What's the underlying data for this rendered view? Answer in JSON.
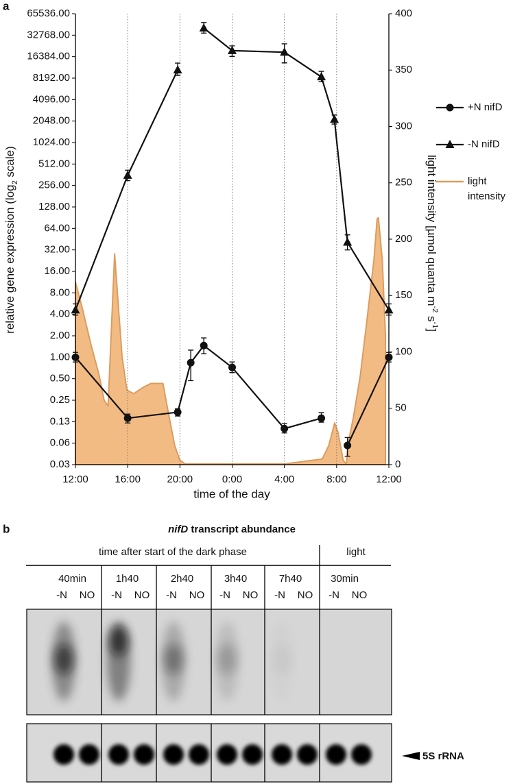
{
  "chart_data": {
    "type": "line",
    "panel_label": "a",
    "xlabel": "time of the day",
    "ylabel": [
      "relative gene expression (log",
      "2",
      " scale)"
    ],
    "y2label": [
      "light intensity [µmol quanta m",
      "-2",
      " s",
      "-1",
      "]"
    ],
    "x": [
      0,
      4,
      7.83,
      8.83,
      9.83,
      12,
      16,
      18.83,
      19.83,
      20.83,
      24
    ],
    "xlim": [
      0,
      24
    ],
    "xticks": [
      {
        "value": 0,
        "label": "12:00"
      },
      {
        "value": 4,
        "label": "16:00"
      },
      {
        "value": 8,
        "label": "20:00"
      },
      {
        "value": 12,
        "label": "0:00"
      },
      {
        "value": 16,
        "label": "4:00"
      },
      {
        "value": 20,
        "label": "8:00"
      },
      {
        "value": 24,
        "label": "12:00"
      }
    ],
    "xgrid": true,
    "ylog": 2,
    "ylim": [
      0.03125,
      65536
    ],
    "yticks": [
      {
        "value": 65536,
        "label": "65536.00"
      },
      {
        "value": 32768,
        "label": "32768.00"
      },
      {
        "value": 16384,
        "label": "16384.00"
      },
      {
        "value": 8192,
        "label": "8192.00"
      },
      {
        "value": 4096,
        "label": "4096.00"
      },
      {
        "value": 2048,
        "label": "2048.00"
      },
      {
        "value": 1024,
        "label": "1024.00"
      },
      {
        "value": 512,
        "label": "512.00"
      },
      {
        "value": 256,
        "label": "256.00"
      },
      {
        "value": 128,
        "label": "128.00"
      },
      {
        "value": 64,
        "label": "64.00"
      },
      {
        "value": 32,
        "label": "32.00"
      },
      {
        "value": 16,
        "label": "16.00"
      },
      {
        "value": 8,
        "label": "8.00"
      },
      {
        "value": 4,
        "label": "4.00"
      },
      {
        "value": 2,
        "label": "2.00"
      },
      {
        "value": 1,
        "label": "1.00"
      },
      {
        "value": 0.5,
        "label": "0.50"
      },
      {
        "value": 0.25,
        "label": "0.25"
      },
      {
        "value": 0.125,
        "label": "0.13"
      },
      {
        "value": 0.0625,
        "label": "0.06"
      },
      {
        "value": 0.03125,
        "label": "0.03"
      }
    ],
    "y2lim": [
      0,
      400
    ],
    "y2ticks": [
      0,
      50,
      100,
      150,
      200,
      250,
      300,
      350,
      400
    ],
    "legend": "right",
    "series": [
      {
        "name": "+N nifD",
        "color": "#111111",
        "marker": "circle",
        "values": [
          1.0,
          0.14,
          0.17,
          0.84,
          1.46,
          0.72,
          0.1,
          0.14,
          null,
          0.058,
          1.0
        ],
        "error_bars": [
          [
            0.86,
            1.17
          ],
          [
            0.12,
            0.16
          ],
          [
            0.15,
            0.19
          ],
          [
            0.47,
            1.26
          ],
          [
            1.12,
            1.87
          ],
          [
            0.61,
            0.86
          ],
          [
            0.087,
            0.117
          ],
          [
            0.123,
            0.167
          ],
          null,
          [
            0.041,
            0.075
          ],
          [
            0.86,
            1.17
          ]
        ]
      },
      {
        "name": "-N nifD",
        "color": "#111111",
        "marker": "triangle",
        "values": [
          4.6,
          355,
          10650,
          null,
          41200,
          19900,
          18900,
          8530,
          2160,
          41,
          4.6
        ],
        "error_bars": [
          [
            3.9,
            5.6
          ],
          [
            300,
            420
          ],
          [
            8950,
            13300
          ],
          null,
          [
            35000,
            49300
          ],
          [
            16500,
            23200
          ],
          [
            13400,
            24800
          ],
          [
            7300,
            10200
          ],
          [
            1860,
            2490
          ],
          [
            32,
            52
          ],
          [
            3.9,
            5.6
          ]
        ]
      },
      {
        "name": "light intensity",
        "type": "area",
        "axis": "y2",
        "color": "#dc9c5e",
        "fill": "#f3bb84",
        "x": [
          0,
          0.5,
          1.2,
          1.8,
          2.2,
          2.5,
          3.0,
          3.26,
          3.57,
          3.94,
          4.46,
          5.25,
          5.78,
          6.3,
          6.7,
          7.1,
          7.6,
          8.0,
          8.4,
          12,
          16,
          18.9,
          19.4,
          19.85,
          20.1,
          20.5,
          20.75,
          20.85,
          21.27,
          21.8,
          22.3,
          22.85,
          23.1,
          23.2,
          23.5,
          23.74
        ],
        "values": [
          162,
          140,
          106,
          80,
          57,
          52,
          187,
          145,
          96,
          66,
          63,
          69,
          72,
          72,
          72,
          47,
          17,
          4,
          0.6,
          0.6,
          0.6,
          5,
          17,
          37,
          29,
          4,
          0,
          17,
          41,
          78,
          126,
          181,
          218,
          219,
          181,
          114
        ]
      }
    ]
  },
  "panel_b": {
    "label": "b",
    "title": {
      "gene": "nifD",
      "rest": " transcript abundance"
    },
    "header_dark": "time after start of the dark phase",
    "header_light": "light",
    "groups": [
      {
        "time": "40min",
        "lanes": [
          "-N",
          "NO"
        ]
      },
      {
        "time": "1h40",
        "lanes": [
          "-N",
          "NO"
        ]
      },
      {
        "time": "2h40",
        "lanes": [
          "-N",
          "NO"
        ]
      },
      {
        "time": "3h40",
        "lanes": [
          "-N",
          "NO"
        ]
      },
      {
        "time": "7h40",
        "lanes": [
          "-N",
          "NO"
        ]
      },
      {
        "time": "30min",
        "lanes": [
          "-N",
          "NO"
        ]
      }
    ],
    "band_label": "5S rRNA"
  }
}
